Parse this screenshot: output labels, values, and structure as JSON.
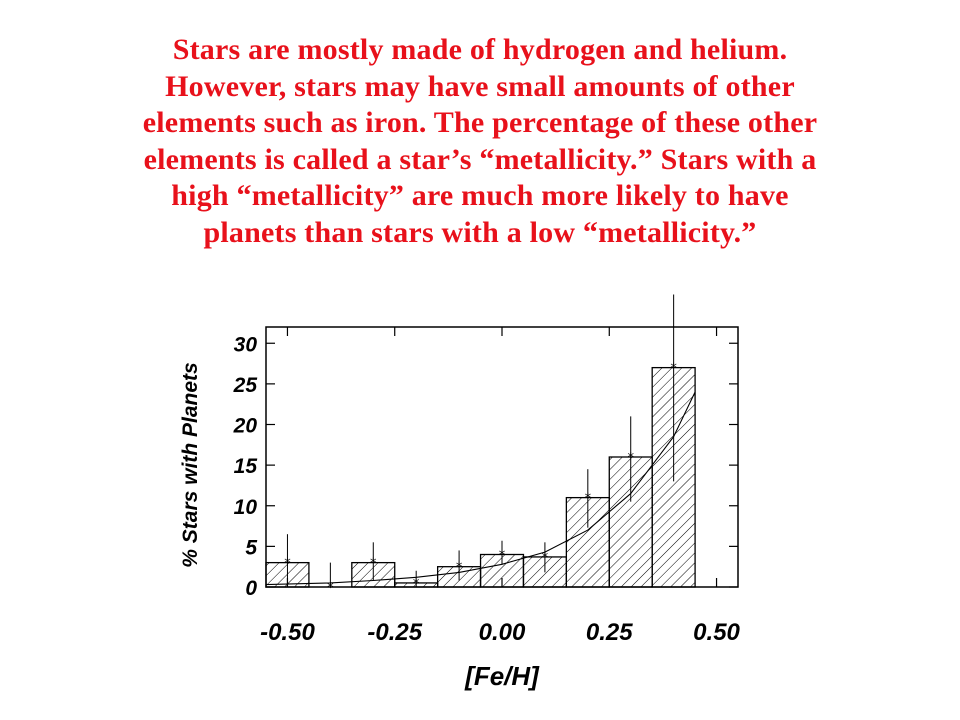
{
  "caption": {
    "color": "#e8111b",
    "lines": [
      "Stars are mostly made of hydrogen and helium.",
      "However, stars may have small amounts of other",
      "elements such as iron.  The percentage of these other",
      "elements is called a star’s “metallicity.”  Stars with a",
      "high “metallicity” are much more likely to have",
      "planets than stars with a low “metallicity.”"
    ]
  },
  "chart_data": {
    "type": "bar",
    "title": "",
    "xlabel": "[Fe/H]",
    "ylabel": "% Stars with Planets",
    "xlim": [
      -0.55,
      0.55
    ],
    "ylim": [
      0,
      32
    ],
    "x_ticks": [
      -0.5,
      -0.25,
      0.0,
      0.25,
      0.5
    ],
    "x_tick_labels": [
      "-0.50",
      "-0.25",
      "0.00",
      "0.25",
      "0.50"
    ],
    "y_ticks": [
      0,
      5,
      10,
      15,
      20,
      25,
      30
    ],
    "y_tick_labels": [
      "0",
      "5",
      "10",
      "15",
      "20",
      "25",
      "30"
    ],
    "grid": false,
    "bins": [
      {
        "x0": -0.55,
        "x1": -0.45,
        "value": 3.0,
        "err_low": 0.0,
        "err_high": 6.5
      },
      {
        "x0": -0.45,
        "x1": -0.35,
        "value": 0.0,
        "err_low": 0.0,
        "err_high": 3.0
      },
      {
        "x0": -0.35,
        "x1": -0.25,
        "value": 3.0,
        "err_low": 0.8,
        "err_high": 5.5
      },
      {
        "x0": -0.25,
        "x1": -0.15,
        "value": 0.5,
        "err_low": 0.0,
        "err_high": 2.0
      },
      {
        "x0": -0.15,
        "x1": -0.05,
        "value": 2.5,
        "err_low": 0.8,
        "err_high": 4.5
      },
      {
        "x0": -0.05,
        "x1": 0.05,
        "value": 4.0,
        "err_low": 2.8,
        "err_high": 5.7
      },
      {
        "x0": 0.05,
        "x1": 0.15,
        "value": 3.7,
        "err_low": 1.8,
        "err_high": 5.5
      },
      {
        "x0": 0.15,
        "x1": 0.25,
        "value": 11.0,
        "err_low": 7.3,
        "err_high": 14.5
      },
      {
        "x0": 0.25,
        "x1": 0.35,
        "value": 16.0,
        "err_low": 10.5,
        "err_high": 21.0
      },
      {
        "x0": 0.35,
        "x1": 0.45,
        "value": 27.0,
        "err_low": 13.0,
        "err_high": 36.0
      }
    ],
    "fit_curve": {
      "x": [
        -0.55,
        -0.4,
        -0.3,
        -0.2,
        -0.1,
        0.0,
        0.1,
        0.2,
        0.3,
        0.4,
        0.45
      ],
      "y": [
        0.3,
        0.5,
        0.8,
        1.2,
        1.8,
        2.8,
        4.3,
        7.0,
        11.5,
        18.5,
        24.0
      ]
    }
  }
}
